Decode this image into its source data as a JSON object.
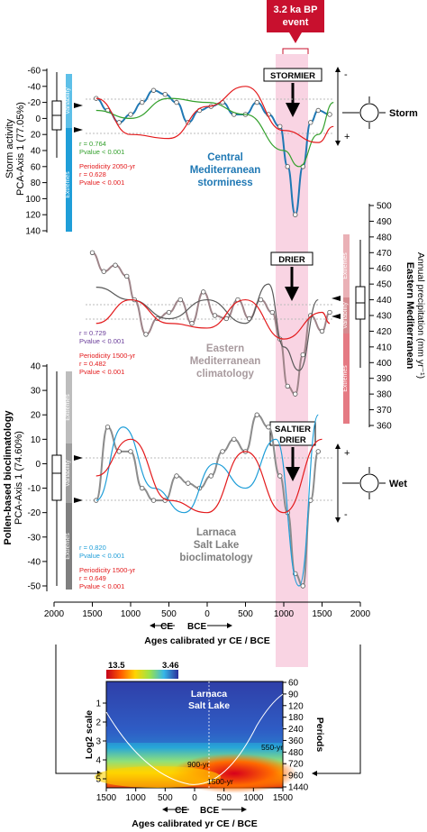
{
  "event": {
    "label_line1": "3.2 ka BP",
    "label_line2": "event",
    "color": "#c8102e",
    "band_color": "#f7c6d9"
  },
  "top": {
    "ylabel_line1": "Storm activity",
    "ylabel_line2": "PCA-Axis 1 (77.05%)",
    "ticks": [
      "-60",
      "-40",
      "-20",
      "0",
      "20",
      "40",
      "60",
      "80",
      "100",
      "120",
      "140"
    ],
    "variability_label": "Variability",
    "extremes_label": "Extremes",
    "stats": [
      {
        "text": "r = 0.764",
        "color": "#33a02c"
      },
      {
        "text": "Pvalue < 0.001",
        "color": "#33a02c"
      },
      {
        "text": "Periodicity 2050-yr",
        "color": "#e31a1c"
      },
      {
        "text": "r = 0.628",
        "color": "#e31a1c"
      },
      {
        "text": "Pvalue < 0.001",
        "color": "#e31a1c"
      }
    ],
    "title_line1": "Central",
    "title_line2": "Mediterranean",
    "title_line3": "storminess",
    "title_color": "#1f78b4",
    "callout": "STORMIER",
    "side_label": "Storm",
    "plus": "+",
    "minus": "-"
  },
  "middle": {
    "ylabel_line1": "Eastern Mediterranean",
    "ylabel_line2": "Annual precipitation (mm yr⁻¹)",
    "ticks": [
      "500",
      "490",
      "480",
      "470",
      "460",
      "450",
      "440",
      "430",
      "420",
      "410",
      "400",
      "390",
      "380",
      "370",
      "360"
    ],
    "variability_label": "Variability",
    "extremes_label": "Extremes",
    "stats": [
      {
        "text": "r = 0.729",
        "color": "#6a3d9a"
      },
      {
        "text": "Pvalue < 0.001",
        "color": "#6a3d9a"
      },
      {
        "text": "Periodicity 1500-yr",
        "color": "#e31a1c"
      },
      {
        "text": "r = 0.482",
        "color": "#e31a1c"
      },
      {
        "text": "Pvalue < 0.001",
        "color": "#e31a1c"
      }
    ],
    "title_line1": "Eastern",
    "title_line2": "Mediterranean",
    "title_line3": "climatology",
    "title_color": "#a89a9e",
    "callout": "DRIER"
  },
  "bottom": {
    "ylabel_line1": "Pollen-based bioclimatology",
    "ylabel_line2": "PCA-Axis 1 (74.60%)",
    "ticks": [
      "40",
      "30",
      "20",
      "10",
      "0",
      "-10",
      "-20",
      "-30",
      "-40",
      "-50"
    ],
    "variability_label": "Variability",
    "extremes_label": "Extremes",
    "stats": [
      {
        "text": "r = 0.820",
        "color": "#1f9ed8"
      },
      {
        "text": "Pvalue < 0.001",
        "color": "#1f9ed8"
      },
      {
        "text": "Periodicity 1500-yr",
        "color": "#e31a1c"
      },
      {
        "text": "r = 0.649",
        "color": "#e31a1c"
      },
      {
        "text": "Pvalue < 0.001",
        "color": "#e31a1c"
      }
    ],
    "title_line1": "Larnaca",
    "title_line2": "Salt Lake",
    "title_line3": "bioclimatology",
    "title_color": "#7f7f7f",
    "callout_line1": "SALTIER",
    "callout_line2": "DRIER",
    "side_label": "Wet",
    "plus": "+",
    "minus": "-"
  },
  "xaxis": {
    "ticks": [
      "2000",
      "1500",
      "1000",
      "500",
      "0",
      "500",
      "1000",
      "1500",
      "2000"
    ],
    "ce": "CE",
    "bce": "BCE",
    "label": "Ages calibrated yr CE / BCE"
  },
  "wavelet": {
    "cbar_min": "13.5",
    "cbar_max": "3.46",
    "title_line1": "Larnaca",
    "title_line2": "Salt Lake",
    "ylabel": "Log2 scale",
    "left_ticks": [
      "1",
      "2",
      "3",
      "4",
      "5"
    ],
    "periods_label": "Periods",
    "right_ticks": [
      "60",
      "90",
      "120",
      "180",
      "240",
      "360",
      "480",
      "720",
      "960",
      "1440"
    ],
    "x_ticks": [
      "1500",
      "1000",
      "500",
      "0",
      "500",
      "1000",
      "1500"
    ],
    "ce": "CE",
    "bce": "BCE",
    "xlabel": "Ages calibrated yr CE / BCE",
    "annotations": [
      "550-yr",
      "900-yr",
      "1500-yr"
    ]
  },
  "chart_data": [
    {
      "type": "line",
      "title": "Central Mediterranean storminess",
      "ylabel": "Storm activity PCA-Axis 1 (77.05%)",
      "ylim": [
        140,
        -60
      ],
      "x_units": "yr CE(-) / BCE(+)",
      "series": [
        {
          "values_x": [
            -1450,
            -1300,
            -1150,
            -1000,
            -850,
            -700,
            -550,
            -400,
            -250,
            -100,
            50,
            200,
            350,
            500,
            650,
            800,
            950,
            1050,
            1150,
            1250,
            1350,
            1450,
            1600
          ],
          "values_y": [
            -25,
            -10,
            5,
            -5,
            -20,
            -35,
            -30,
            -20,
            5,
            -10,
            -15,
            -20,
            -5,
            -5,
            -20,
            -5,
            10,
            60,
            120,
            60,
            5,
            -10,
            -5
          ],
          "color": "#1f78b4"
        },
        {
          "name": "r = 0.764",
          "values_x": [
            -1450,
            -1000,
            -500,
            0,
            500,
            1000,
            1200,
            1450,
            1650
          ],
          "values_y": [
            -10,
            0,
            -25,
            -20,
            -5,
            40,
            60,
            20,
            -20
          ],
          "color": "#33a02c"
        },
        {
          "name": "Periodicity 2050-yr",
          "values_x": [
            -1450,
            -1000,
            -500,
            0,
            500,
            1000,
            1450,
            1650
          ],
          "values_y": [
            -25,
            20,
            25,
            -15,
            -40,
            15,
            30,
            10
          ],
          "color": "#e31a1c"
        }
      ]
    },
    {
      "type": "line",
      "title": "Eastern Mediterranean climatology",
      "ylabel": "Eastern Mediterranean Annual precipitation (mm yr-1)",
      "ylim": [
        360,
        500
      ],
      "series": [
        {
          "values_x": [
            -1500,
            -1350,
            -1200,
            -1050,
            -950,
            -800,
            -650,
            -500,
            -350,
            -200,
            -50,
            100,
            250,
            400,
            550,
            700,
            850,
            950,
            1050,
            1150,
            1250,
            1350,
            1500,
            1600
          ],
          "values_y": [
            470,
            458,
            462,
            455,
            440,
            418,
            428,
            432,
            440,
            425,
            445,
            430,
            428,
            440,
            428,
            440,
            432,
            415,
            385,
            380,
            405,
            430,
            420,
            432
          ],
          "color": "#9e8489"
        },
        {
          "name": "r = 0.729",
          "values_x": [
            -1450,
            -1000,
            -500,
            0,
            500,
            800,
            1000,
            1200,
            1450
          ],
          "values_y": [
            448,
            440,
            428,
            440,
            425,
            450,
            410,
            395,
            440
          ],
          "color": "#595959"
        },
        {
          "name": "Periodicity 1500-yr",
          "values_x": [
            -1450,
            -1000,
            -500,
            0,
            500,
            1000,
            1500,
            1600
          ],
          "values_y": [
            425,
            440,
            425,
            422,
            440,
            415,
            432,
            425
          ],
          "color": "#e31a1c"
        }
      ]
    },
    {
      "type": "line",
      "title": "Larnaca Salt Lake bioclimatology",
      "ylabel": "Pollen-based bioclimatology PCA-Axis 1 (74.60%)",
      "ylim": [
        -55,
        40
      ],
      "series": [
        {
          "values_x": [
            -1450,
            -1300,
            -1150,
            -1000,
            -850,
            -700,
            -550,
            -400,
            -250,
            -100,
            50,
            200,
            350,
            500,
            650,
            800,
            950,
            1050,
            1150,
            1250,
            1350,
            1450
          ],
          "values_y": [
            -15,
            15,
            5,
            5,
            -10,
            -15,
            -15,
            -5,
            -8,
            -10,
            -5,
            5,
            10,
            5,
            20,
            15,
            -5,
            -20,
            -45,
            -50,
            -15,
            5
          ],
          "color": "#8c8c8c"
        },
        {
          "name": "r = 0.820",
          "values_x": [
            -1450,
            -1100,
            -700,
            -300,
            100,
            500,
            900,
            1200,
            1450
          ],
          "values_y": [
            -15,
            15,
            -10,
            -20,
            0,
            -10,
            10,
            -50,
            20
          ],
          "color": "#1f9ed8"
        },
        {
          "name": "Periodicity 1500-yr",
          "values_x": [
            -1450,
            -1000,
            -500,
            0,
            500,
            1000,
            1500
          ],
          "values_y": [
            -5,
            10,
            -15,
            -20,
            5,
            -20,
            10
          ],
          "color": "#e31a1c"
        }
      ]
    },
    {
      "type": "heatmap",
      "title": "Larnaca Salt Lake",
      "xlabel": "Ages calibrated yr CE / BCE",
      "ylabel": "Log2 scale",
      "colorbar_range": [
        "13.5",
        "3.46"
      ]
    }
  ]
}
